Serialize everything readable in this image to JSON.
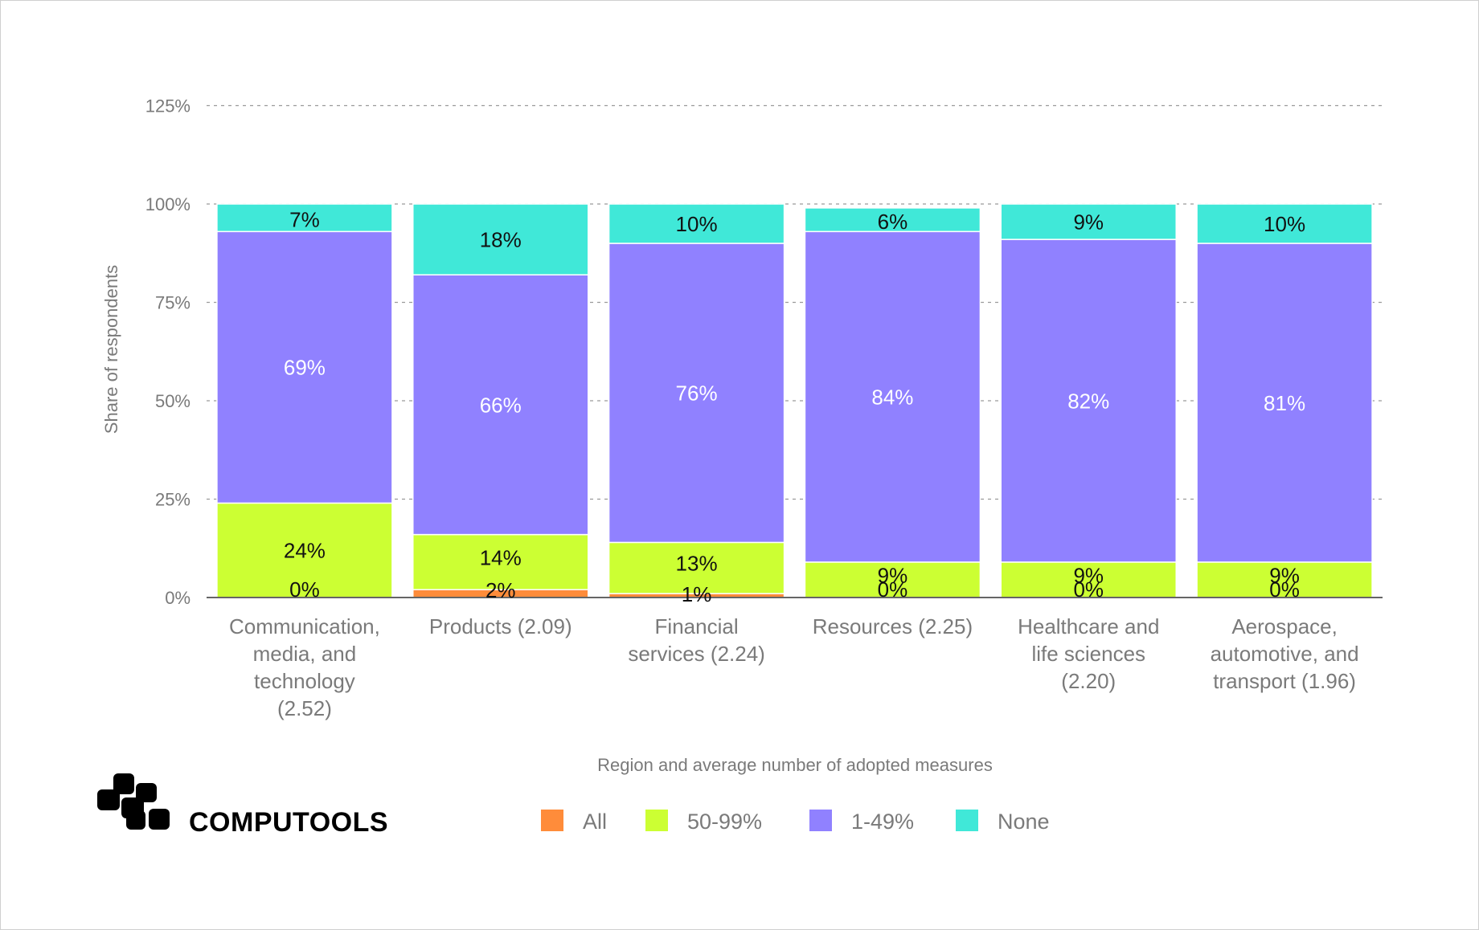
{
  "brand": {
    "name": "COMPUTOOLS"
  },
  "chart_data": {
    "type": "bar",
    "stacked": true,
    "title": "",
    "xlabel": "Region and average number of adopted measures",
    "ylabel": "Share of respondents",
    "ylim": [
      0,
      125
    ],
    "yticks": [
      0,
      25,
      50,
      75,
      100,
      125
    ],
    "ytick_labels": [
      "0%",
      "25%",
      "50%",
      "75%",
      "100%",
      "125%"
    ],
    "grid": true,
    "legend_position": "bottom",
    "categories": [
      [
        "Communication,",
        "media, and",
        "technology",
        "(2.52)"
      ],
      [
        "Products (2.09)"
      ],
      [
        "Financial",
        "services (2.24)"
      ],
      [
        "Resources (2.25)"
      ],
      [
        "Healthcare and",
        "life sciences",
        "(2.20)"
      ],
      [
        "Aerospace,",
        "automotive, and",
        "transport (1.96)"
      ]
    ],
    "series": [
      {
        "name": "All",
        "color": "#ff8c3a",
        "values": [
          0,
          2,
          1,
          0,
          0,
          0
        ],
        "labels": [
          "0%",
          "2%",
          "1%",
          "0%",
          "0%",
          "0%"
        ],
        "label_color": "dark"
      },
      {
        "name": "50-99%",
        "color": "#ccff33",
        "values": [
          24,
          14,
          13,
          9,
          9,
          9
        ],
        "labels": [
          "24%",
          "14%",
          "13%",
          "9%",
          "9%",
          "9%"
        ],
        "label_color": "dark"
      },
      {
        "name": "1-49%",
        "color": "#9081ff",
        "values": [
          69,
          66,
          76,
          84,
          82,
          81
        ],
        "labels": [
          "69%",
          "66%",
          "76%",
          "84%",
          "82%",
          "81%"
        ],
        "label_color": "light"
      },
      {
        "name": "None",
        "color": "#40e8d8",
        "values": [
          7,
          18,
          10,
          6,
          9,
          10
        ],
        "labels": [
          "7%",
          "18%",
          "10%",
          "6%",
          "9%",
          "10%"
        ],
        "label_color": "dark"
      }
    ]
  }
}
